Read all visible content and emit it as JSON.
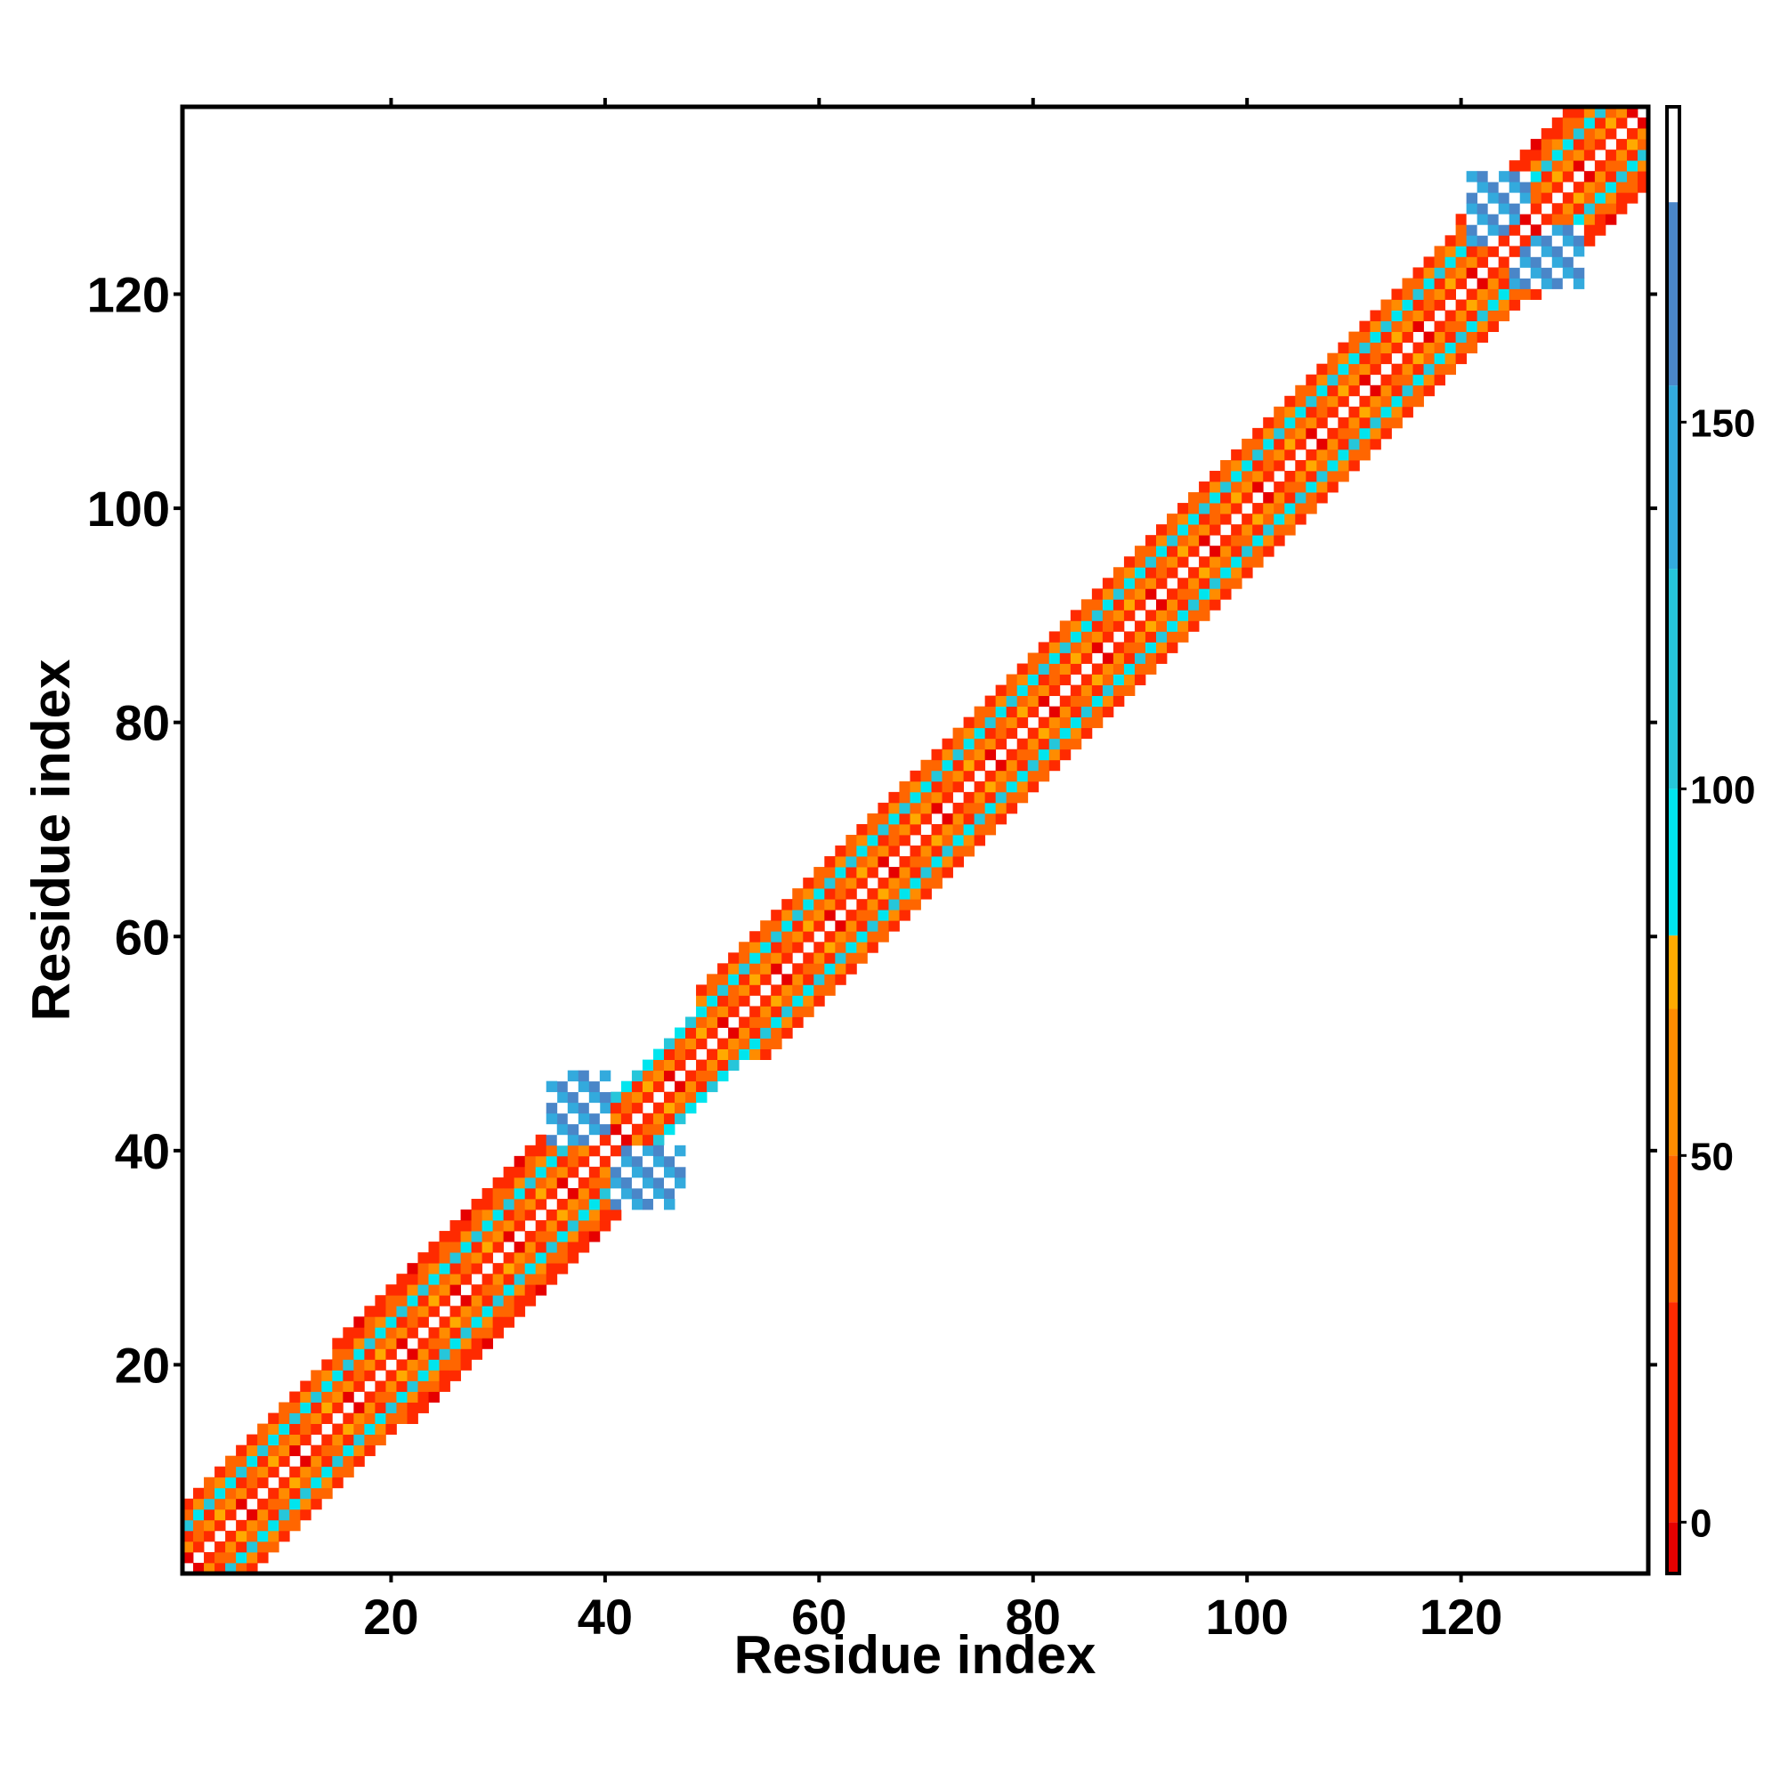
{
  "chart_data": {
    "type": "heatmap",
    "title": "",
    "xlabel": "Residue index",
    "ylabel": "Residue index",
    "xlim": [
      0.5,
      137.5
    ],
    "ylim": [
      0.5,
      137.5
    ],
    "x_ticks": [
      20,
      40,
      60,
      80,
      100,
      120
    ],
    "y_ticks": [
      20,
      40,
      60,
      80,
      100,
      120
    ],
    "colorbar": {
      "range": [
        -7,
        193
      ],
      "ticks": [
        0,
        50,
        100,
        150
      ],
      "bins": [
        {
          "from": -7,
          "to": 0,
          "color": "#e60000"
        },
        {
          "from": 0,
          "to": 30,
          "color": "#ff2a00"
        },
        {
          "from": 30,
          "to": 50,
          "color": "#ff6600"
        },
        {
          "from": 50,
          "to": 70,
          "color": "#ff8c00"
        },
        {
          "from": 70,
          "to": 80,
          "color": "#ffaa00"
        },
        {
          "from": 80,
          "to": 100,
          "color": "#00e5ee"
        },
        {
          "from": 100,
          "to": 130,
          "color": "#26c6da"
        },
        {
          "from": 130,
          "to": 155,
          "color": "#33aadd"
        },
        {
          "from": 155,
          "to": 180,
          "color": "#4a86c8"
        },
        {
          "from": 180,
          "to": 193,
          "color": "#ffffff"
        }
      ]
    },
    "band_pattern": {
      "description_of_values": "value at residue pair (i,j) by offset d=|i-j|",
      "offsets": [
        1,
        2,
        3,
        4,
        5,
        6
      ],
      "values": [
        10,
        60,
        35,
        95,
        45,
        25
      ]
    },
    "band_extent": [
      {
        "from": 1,
        "to": 14,
        "max_offset": 6
      },
      {
        "from": 14,
        "to": 36,
        "max_offset": 7
      },
      {
        "from": 36,
        "to": 48,
        "max_offset": 4
      },
      {
        "from": 48,
        "to": 119,
        "max_offset": 6
      },
      {
        "from": 119,
        "to": 137,
        "max_offset": 7
      }
    ],
    "cross_blocks": [
      {
        "i_range": [
          36,
          40
        ],
        "j_range": [
          41,
          47
        ],
        "value": 165
      },
      {
        "i_range": [
          41,
          46
        ],
        "j_range": [
          35,
          40
        ],
        "value": 165
      },
      {
        "i_range": [
          121,
          126
        ],
        "j_range": [
          125,
          131
        ],
        "value": 160
      }
    ]
  }
}
